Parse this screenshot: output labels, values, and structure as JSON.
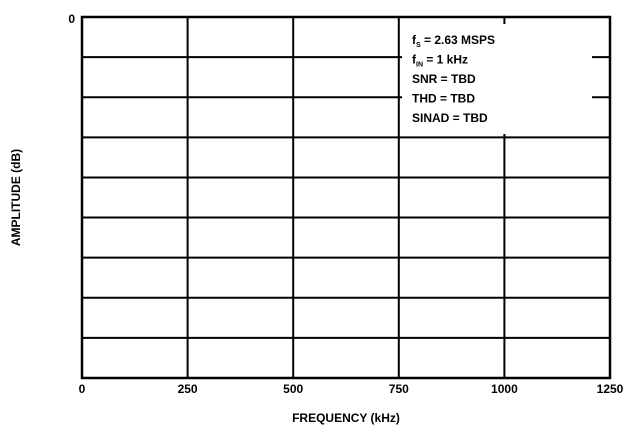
{
  "chart_data": {
    "type": "line",
    "title": "",
    "xlabel": "FREQUENCY (kHz)",
    "ylabel": "AMPLITUDE (dB)",
    "xlim": [
      0,
      1250
    ],
    "x_ticks": [
      0,
      250,
      500,
      750,
      1000,
      1250
    ],
    "x_tick_labels": [
      "0",
      "250",
      "500",
      "750",
      "1000",
      "1250"
    ],
    "y_top_label": "0",
    "y_grid_divisions": 9,
    "grid": true,
    "series": [],
    "annotations": [
      {
        "main": "f",
        "sub": "S",
        "rest": " = 2.63 MSPS"
      },
      {
        "main": "f",
        "sub": "IN",
        "rest": " = 1 kHz"
      },
      {
        "main": "SNR = TBD",
        "sub": "",
        "rest": ""
      },
      {
        "main": "THD = TBD",
        "sub": "",
        "rest": ""
      },
      {
        "main": "SINAD = TBD",
        "sub": "",
        "rest": ""
      }
    ],
    "annotation_position": "top-right"
  }
}
